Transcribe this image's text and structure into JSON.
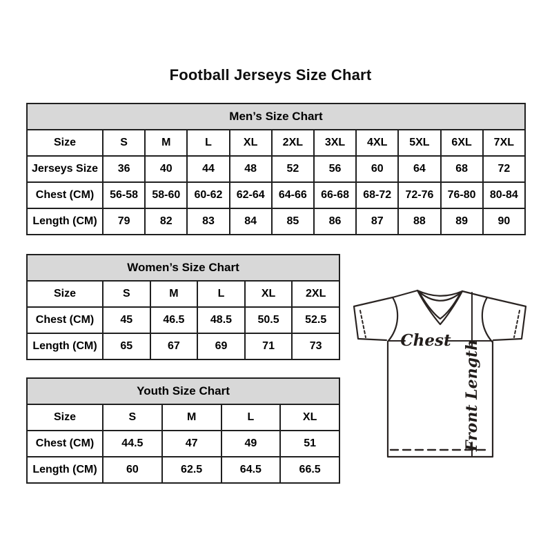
{
  "title": "Football Jerseys Size Chart",
  "colors": {
    "header_bg": "#d8d8d8",
    "border": "#1f1f1f",
    "text": "#000000",
    "diagram_stroke": "#2a2422"
  },
  "chart_data": [
    {
      "type": "table",
      "title": "Men’s Size Chart",
      "header": [
        "Size",
        "S",
        "M",
        "L",
        "XL",
        "2XL",
        "3XL",
        "4XL",
        "5XL",
        "6XL",
        "7XL"
      ],
      "rows": [
        [
          "Jerseys Size",
          "36",
          "40",
          "44",
          "48",
          "52",
          "56",
          "60",
          "64",
          "68",
          "72"
        ],
        [
          "Chest (CM)",
          "56-58",
          "58-60",
          "60-62",
          "62-64",
          "64-66",
          "66-68",
          "68-72",
          "72-76",
          "76-80",
          "80-84"
        ],
        [
          "Length (CM)",
          "79",
          "82",
          "83",
          "84",
          "85",
          "86",
          "87",
          "88",
          "89",
          "90"
        ]
      ]
    },
    {
      "type": "table",
      "title": "Women’s Size Chart",
      "header": [
        "Size",
        "S",
        "M",
        "L",
        "XL",
        "2XL"
      ],
      "rows": [
        [
          "Chest (CM)",
          "45",
          "46.5",
          "48.5",
          "50.5",
          "52.5"
        ],
        [
          "Length (CM)",
          "65",
          "67",
          "69",
          "71",
          "73"
        ]
      ]
    },
    {
      "type": "table",
      "title": "Youth Size Chart",
      "header": [
        "Size",
        "S",
        "M",
        "L",
        "XL"
      ],
      "rows": [
        [
          "Chest (CM)",
          "44.5",
          "47",
          "49",
          "51"
        ],
        [
          "Length (CM)",
          "60",
          "62.5",
          "64.5",
          "66.5"
        ]
      ]
    }
  ],
  "diagram": {
    "chest_label": "Chest",
    "front_length_label": "Front Length"
  }
}
